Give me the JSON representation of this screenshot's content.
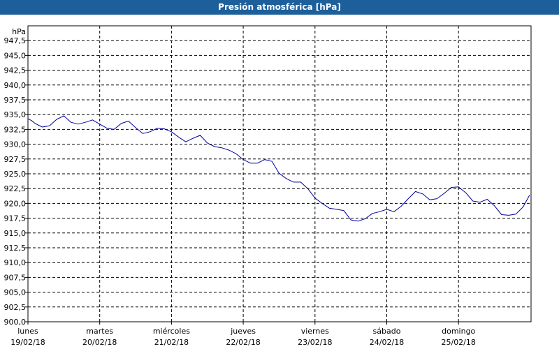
{
  "window": {
    "title": "Presión atmosférica [hPa]"
  },
  "chart_data": {
    "type": "line",
    "title": "Presión atmosférica [hPa]",
    "ylabel": "hPa",
    "xlabel": "",
    "ylim": [
      900,
      950
    ],
    "yticks": [
      "900,0",
      "902,5",
      "905,0",
      "907,5",
      "910,0",
      "912,5",
      "915,0",
      "917,5",
      "920,0",
      "922,5",
      "925,0",
      "927,5",
      "930,0",
      "932,5",
      "935,0",
      "937,5",
      "940,0",
      "942,5",
      "945,0",
      "947,5"
    ],
    "xdays": [
      {
        "day": "lunes",
        "date": "19/02/18"
      },
      {
        "day": "martes",
        "date": "20/02/18"
      },
      {
        "day": "miércoles",
        "date": "21/02/18"
      },
      {
        "day": "jueves",
        "date": "22/02/18"
      },
      {
        "day": "viernes",
        "date": "23/02/18"
      },
      {
        "day": "sábado",
        "date": "24/02/18"
      },
      {
        "day": "domingo",
        "date": "25/02/18"
      }
    ],
    "grid": true,
    "line_color": "#00009c",
    "series": [
      {
        "x": [
          0,
          0.05,
          0.1,
          0.2,
          0.3,
          0.4,
          0.5,
          0.6,
          0.7,
          0.8,
          0.9,
          1.0,
          1.1,
          1.2,
          1.3,
          1.4,
          1.5,
          1.6,
          1.7,
          1.8,
          1.9,
          2.0,
          2.1,
          2.2,
          2.3,
          2.4,
          2.5,
          2.6,
          2.7,
          2.8,
          2.9,
          3.0,
          3.1,
          3.2,
          3.3,
          3.4,
          3.5,
          3.6,
          3.7,
          3.8,
          3.9,
          4.0,
          4.1,
          4.2,
          4.3,
          4.4,
          4.5,
          4.6,
          4.7,
          4.8,
          4.9,
          5.0,
          5.1,
          5.2,
          5.3,
          5.4,
          5.5,
          5.6,
          5.7,
          5.8,
          5.9,
          6.0,
          6.1,
          6.2,
          6.3,
          6.4,
          6.5,
          6.6,
          6.7,
          6.8,
          6.9,
          6.99
        ],
        "y": [
          934.3,
          934.0,
          933.5,
          932.9,
          933.1,
          934.2,
          934.8,
          933.7,
          933.4,
          933.7,
          934.1,
          933.4,
          932.7,
          932.5,
          933.5,
          933.9,
          932.8,
          931.8,
          932.1,
          932.7,
          932.6,
          932.1,
          931.2,
          930.4,
          931.0,
          931.5,
          930.2,
          929.6,
          929.4,
          929.0,
          928.4,
          927.4,
          926.8,
          926.8,
          927.4,
          927.1,
          925.1,
          924.2,
          923.6,
          923.6,
          922.5,
          920.9,
          920.0,
          919.2,
          919.0,
          918.8,
          917.2,
          917.0,
          917.4,
          918.3,
          918.6,
          919.0,
          918.6,
          919.5,
          920.8,
          922.0,
          921.6,
          920.6,
          920.8,
          921.7,
          922.7,
          922.8,
          921.8,
          920.4,
          920.2,
          920.7,
          919.6,
          918.1,
          918.0,
          918.2,
          919.4,
          921.4
        ]
      }
    ]
  }
}
